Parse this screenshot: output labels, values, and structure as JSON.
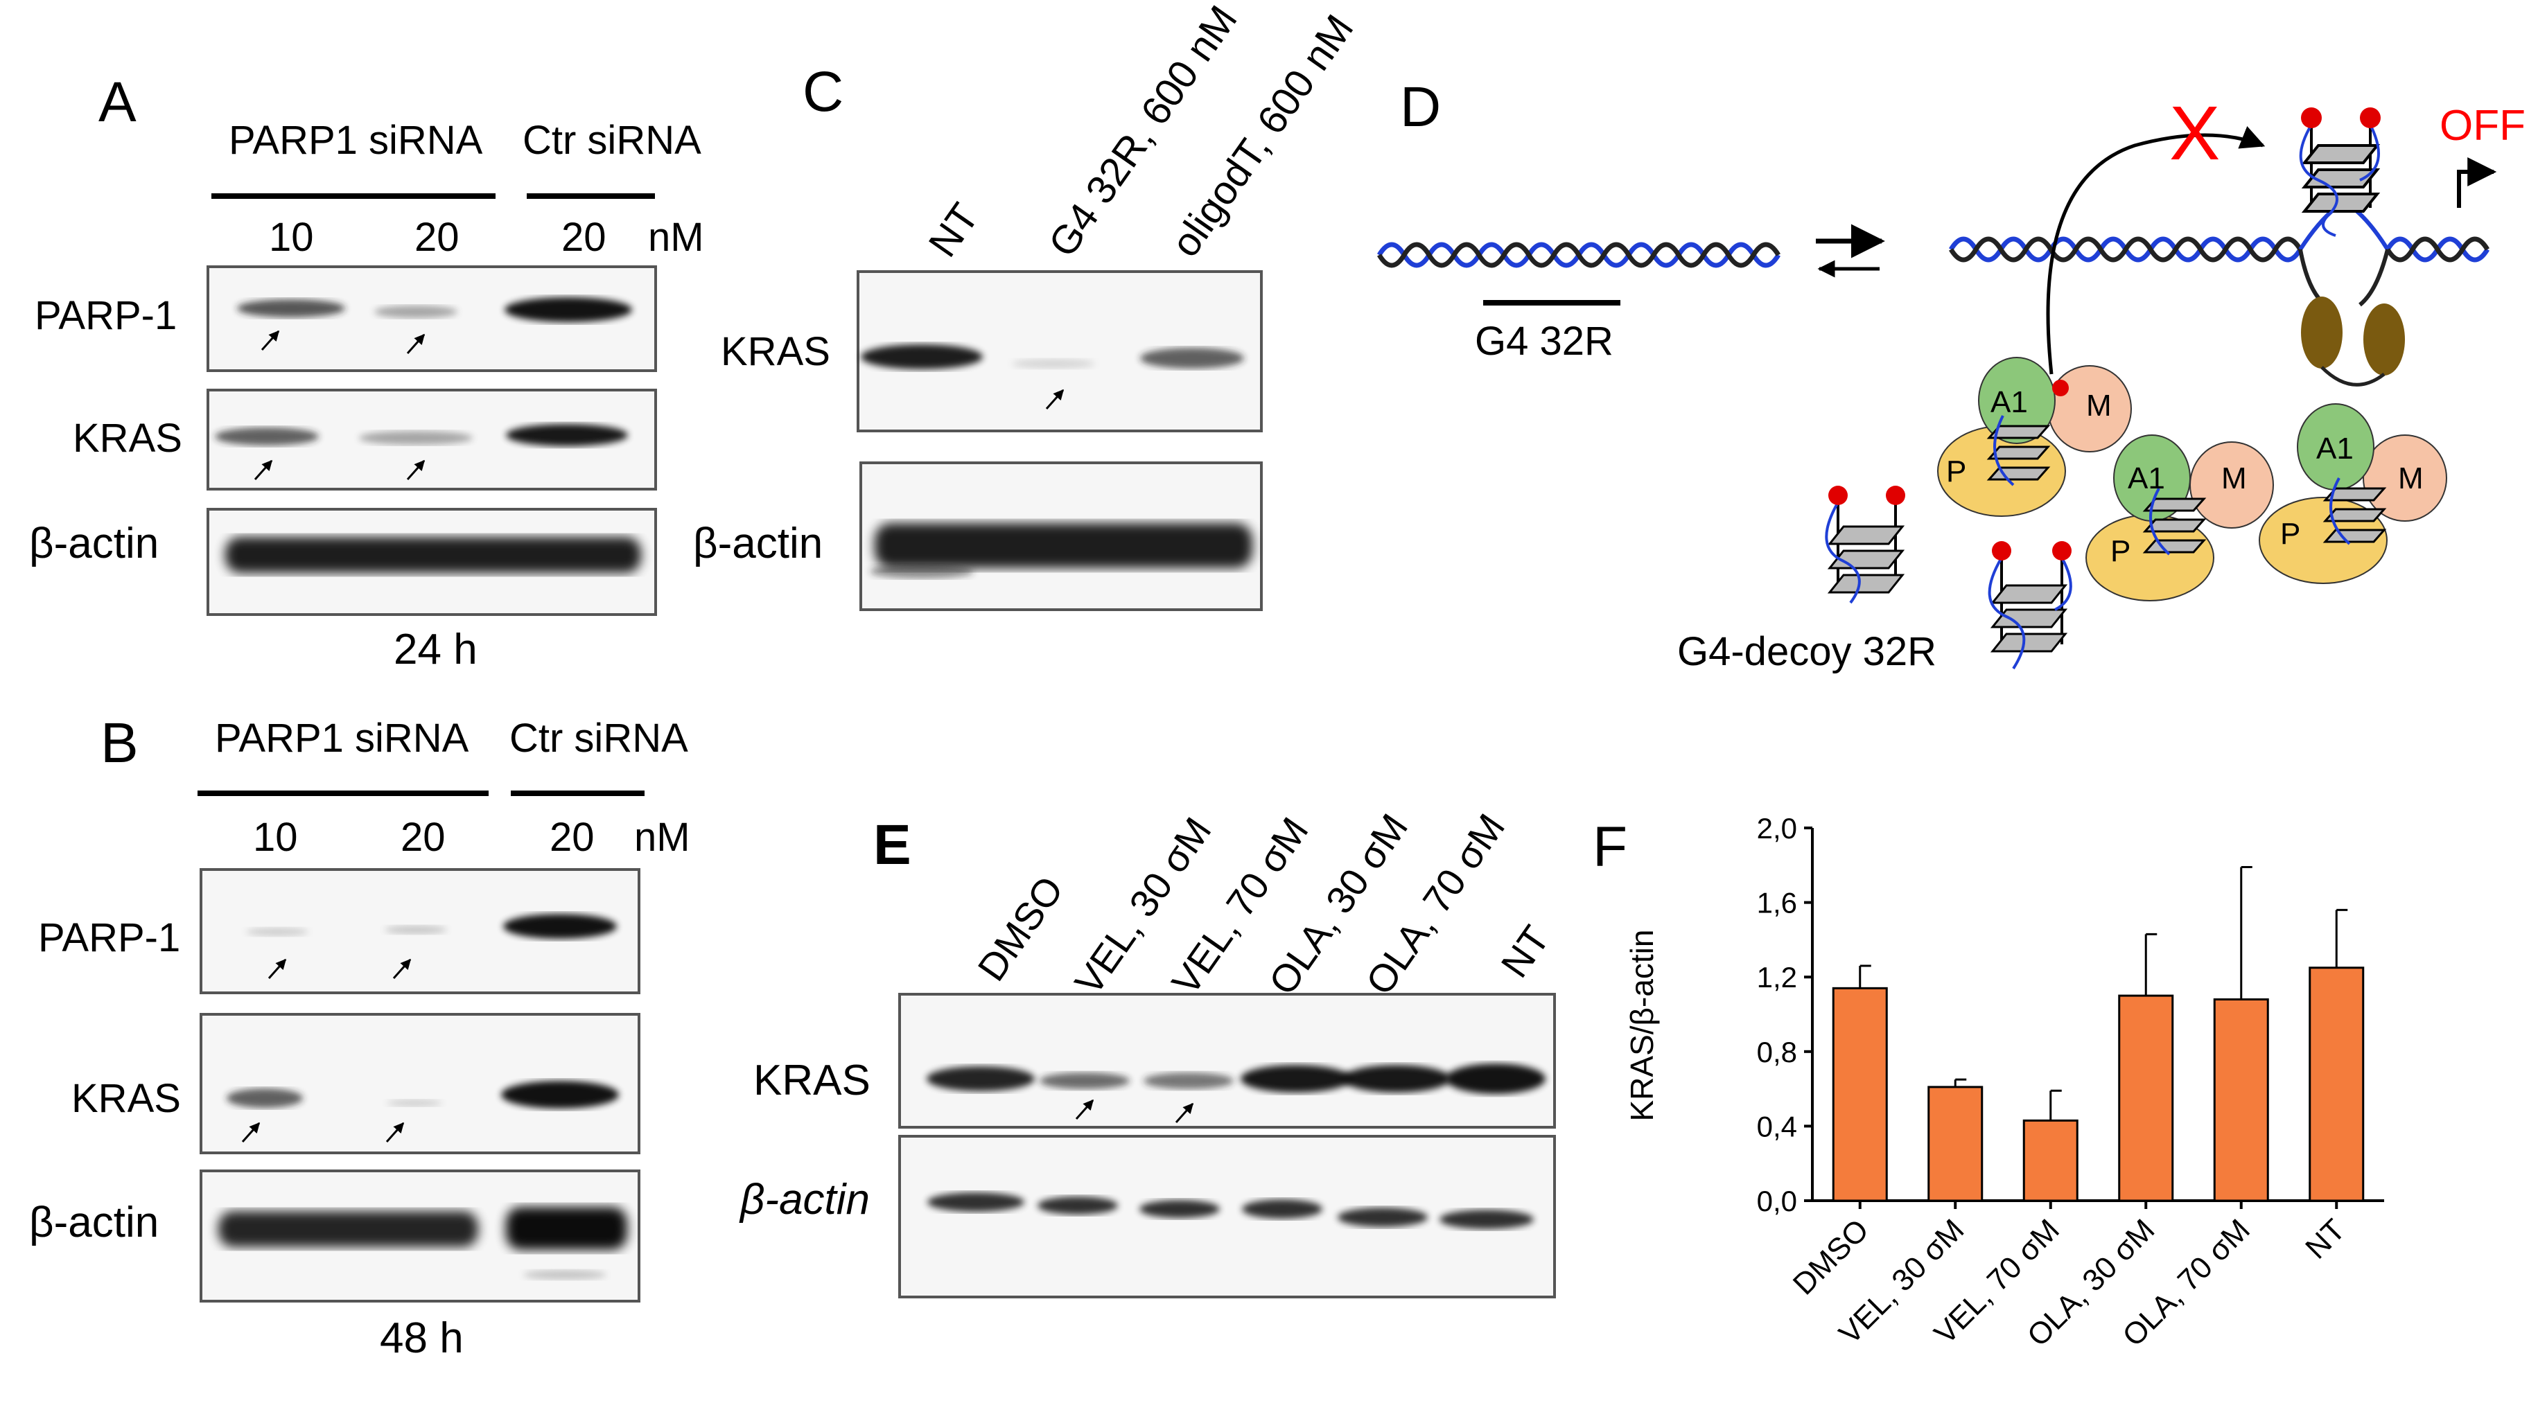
{
  "panelA": {
    "letter": "A",
    "group1": "PARP1 siRNA",
    "group2": "Ctr siRNA",
    "doses": [
      "10",
      "20",
      "20"
    ],
    "unit": "nM",
    "rows": [
      "PARP-1",
      "KRAS",
      "β-actin"
    ],
    "time": "24 h"
  },
  "panelB": {
    "letter": "B",
    "group1": "PARP1 siRNA",
    "group2": "Ctr siRNA",
    "doses": [
      "10",
      "20",
      "20"
    ],
    "unit": "nM",
    "rows": [
      "PARP-1",
      "KRAS",
      "β-actin"
    ],
    "time": "48 h"
  },
  "panelC": {
    "letter": "C",
    "lanes": [
      "NT",
      "G4 32R, 600 nM",
      "oligodT, 600 nM"
    ],
    "rows": [
      "KRAS",
      "β-actin"
    ]
  },
  "panelD": {
    "letter": "D",
    "g4_label": "G4 32R",
    "decoy_label": "G4-decoy 32R",
    "off_label": "OFF",
    "block_mark": "X",
    "proteins": {
      "a1": "A1",
      "m": "M",
      "p": "P"
    },
    "colors": {
      "blocked": "#ff0000",
      "dna_blue": "#1f3fd6",
      "a1": "#8cc77a",
      "m": "#f6c3a6",
      "p": "#f5cf6a",
      "tf": "#7a5a10"
    }
  },
  "panelE": {
    "letter": "E",
    "lanes": [
      "DMSO",
      "VEL, 30 σM",
      "VEL, 70 σM",
      "OLA, 30 σM",
      "OLA, 70 σM",
      "NT"
    ],
    "rows": [
      "KRAS",
      "β-actin"
    ]
  },
  "panelF": {
    "letter": "F",
    "chart_data": {
      "type": "bar",
      "categories": [
        "DMSO",
        "VEL, 30 σM",
        "VEL, 70 σM",
        "OLA, 30 σM",
        "OLA, 70 σM",
        "NT"
      ],
      "values": [
        1.14,
        0.61,
        0.43,
        1.1,
        1.08,
        1.25
      ],
      "errors": [
        0.12,
        0.04,
        0.16,
        0.33,
        0.71,
        0.31
      ],
      "ylabel": "KRAS/β-actin",
      "ylim": [
        0,
        2.0
      ],
      "yticks": [
        "0,0",
        "0,4",
        "0,8",
        "1,2",
        "1,6",
        "2,0"
      ],
      "bar_color": "#f47c3c",
      "grid": false
    }
  }
}
